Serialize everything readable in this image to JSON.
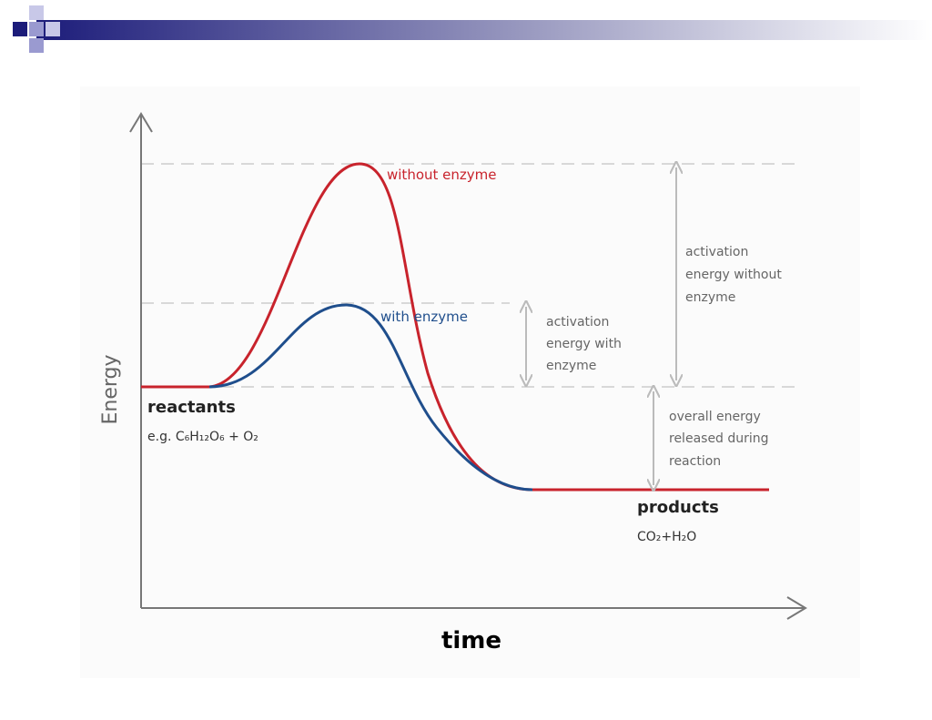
{
  "diagram": {
    "y_axis_label": "Energy",
    "x_axis_label": "time",
    "curves": {
      "without": "without enzyme",
      "with": "with enzyme"
    },
    "annotations": {
      "activation_with": [
        "activation",
        "energy with",
        "enzyme"
      ],
      "activation_without": [
        "activation",
        "energy without",
        "enzyme"
      ],
      "overall": [
        "overall energy",
        "released during",
        "reaction"
      ]
    },
    "reactants": {
      "label": "reactants",
      "example": "e.g. C₆H₁₂O₆ + O₂"
    },
    "products": {
      "label": "products",
      "formula": "CO₂+H₂O"
    }
  }
}
